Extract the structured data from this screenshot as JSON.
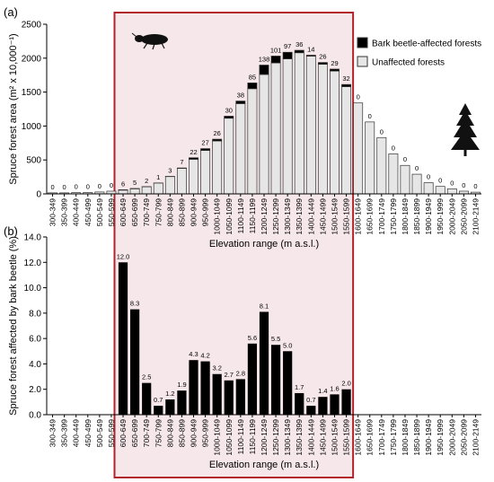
{
  "colors": {
    "affected": "#000000",
    "unaffected": "#e6e6e6",
    "bar_outline": "#333333",
    "highlight_fill": "#f6e8ea",
    "highlight_border": "#b3232a"
  },
  "icons": [
    "bark-beetle-icon",
    "spruce-tree-icon"
  ],
  "chart_data": [
    {
      "panel_label": "(a)",
      "type": "bar",
      "stacked": true,
      "categories": [
        "300-349",
        "350-399",
        "400-449",
        "450-499",
        "500-549",
        "550-599",
        "600-649",
        "650-699",
        "700-749",
        "750-799",
        "800-849",
        "850-899",
        "900-949",
        "950-999",
        "1000-1049",
        "1050-1099",
        "1100-1149",
        "1150-1199",
        "1200-1249",
        "1250-1299",
        "1300-1349",
        "1350-1399",
        "1400-1449",
        "1450-1499",
        "1500-1549",
        "1550-1599",
        "1600-1649",
        "1650-1699",
        "1700-1749",
        "1750-1799",
        "1800-1849",
        "1850-1899",
        "1900-1949",
        "1950-1999",
        "2000-2049",
        "2050-2099",
        "2100-2149"
      ],
      "series": [
        {
          "name": "Bark beetle-affected forests",
          "values": [
            0,
            0,
            0,
            0,
            0,
            0,
            6,
            5,
            2,
            1,
            3,
            7,
            22,
            27,
            26,
            30,
            38,
            85,
            138,
            101,
            97,
            36,
            14,
            26,
            29,
            32,
            0,
            0,
            0,
            0,
            0,
            0,
            0,
            0,
            0,
            0,
            0
          ]
        },
        {
          "name": "Unaffected forests",
          "values": [
            15,
            15,
            18,
            20,
            28,
            40,
            55,
            75,
            105,
            160,
            255,
            375,
            510,
            640,
            780,
            1115,
            1330,
            1550,
            1760,
            1930,
            1990,
            2080,
            2030,
            1910,
            1810,
            1580,
            1340,
            1060,
            830,
            590,
            420,
            290,
            165,
            110,
            75,
            40,
            25
          ]
        }
      ],
      "data_labels": [
        "0",
        "0",
        "0",
        "0",
        "0",
        "0",
        "6",
        "5",
        "2",
        "1",
        "3",
        "7",
        "22",
        "27",
        "26",
        "30",
        "38",
        "85",
        "138",
        "101",
        "97",
        "36",
        "14",
        "26",
        "29",
        "32",
        "0",
        "0",
        "0",
        "0",
        "0",
        "0",
        "0",
        "0",
        "0",
        "0",
        "0"
      ],
      "xlabel": "Elevation range (m a.s.l.)",
      "ylabel": "Spruce forest area (m² x 10,000⁻¹)",
      "ylim": [
        0,
        2500
      ],
      "yticks": [
        "0",
        "500",
        "1000",
        "1500",
        "2000",
        "2500"
      ],
      "legend_position": "top-right",
      "grid": false
    },
    {
      "panel_label": "(b)",
      "type": "bar",
      "categories": [
        "300-349",
        "350-399",
        "400-449",
        "450-499",
        "500-549",
        "550-599",
        "600-649",
        "650-699",
        "700-749",
        "750-799",
        "800-849",
        "850-899",
        "900-949",
        "950-999",
        "1000-1049",
        "1050-1099",
        "1100-1149",
        "1150-1199",
        "1200-1249",
        "1250-1299",
        "1300-1349",
        "1350-1399",
        "1400-1449",
        "1450-1499",
        "1500-1549",
        "1550-1599",
        "1600-1649",
        "1650-1699",
        "1700-1749",
        "1750-1799",
        "1800-1849",
        "1850-1899",
        "1900-1949",
        "1950-1999",
        "2000-2049",
        "2050-2099",
        "2100-2149"
      ],
      "values": [
        null,
        null,
        null,
        null,
        null,
        null,
        12.0,
        8.3,
        2.5,
        0.7,
        1.2,
        1.9,
        4.3,
        4.2,
        3.2,
        2.7,
        2.8,
        5.6,
        8.1,
        5.5,
        5.0,
        1.7,
        0.7,
        1.4,
        1.6,
        2.0,
        null,
        null,
        null,
        null,
        null,
        null,
        null,
        null,
        null,
        null,
        null
      ],
      "data_labels": [
        "",
        "",
        "",
        "",
        "",
        "",
        "12.0",
        "8.3",
        "2.5",
        "0.7",
        "1.2",
        "1.9",
        "4.3",
        "4.2",
        "3.2",
        "2.7",
        "2.8",
        "5.6",
        "8.1",
        "5.5",
        "5.0",
        "1.7",
        "0.7",
        "1.4",
        "1.6",
        "2.0",
        "",
        "",
        "",
        "",
        "",
        "",
        "",
        "",
        "",
        "",
        ""
      ],
      "xlabel": "Elevation range (m a.s.l.)",
      "ylabel": "Spruce forest affected by bark beetle (%)",
      "ylim": [
        0,
        14
      ],
      "yticks": [
        "0.0",
        "2.0",
        "4.0",
        "6.0",
        "8.0",
        "10.0",
        "12.0",
        "14.0"
      ],
      "grid": false
    }
  ]
}
